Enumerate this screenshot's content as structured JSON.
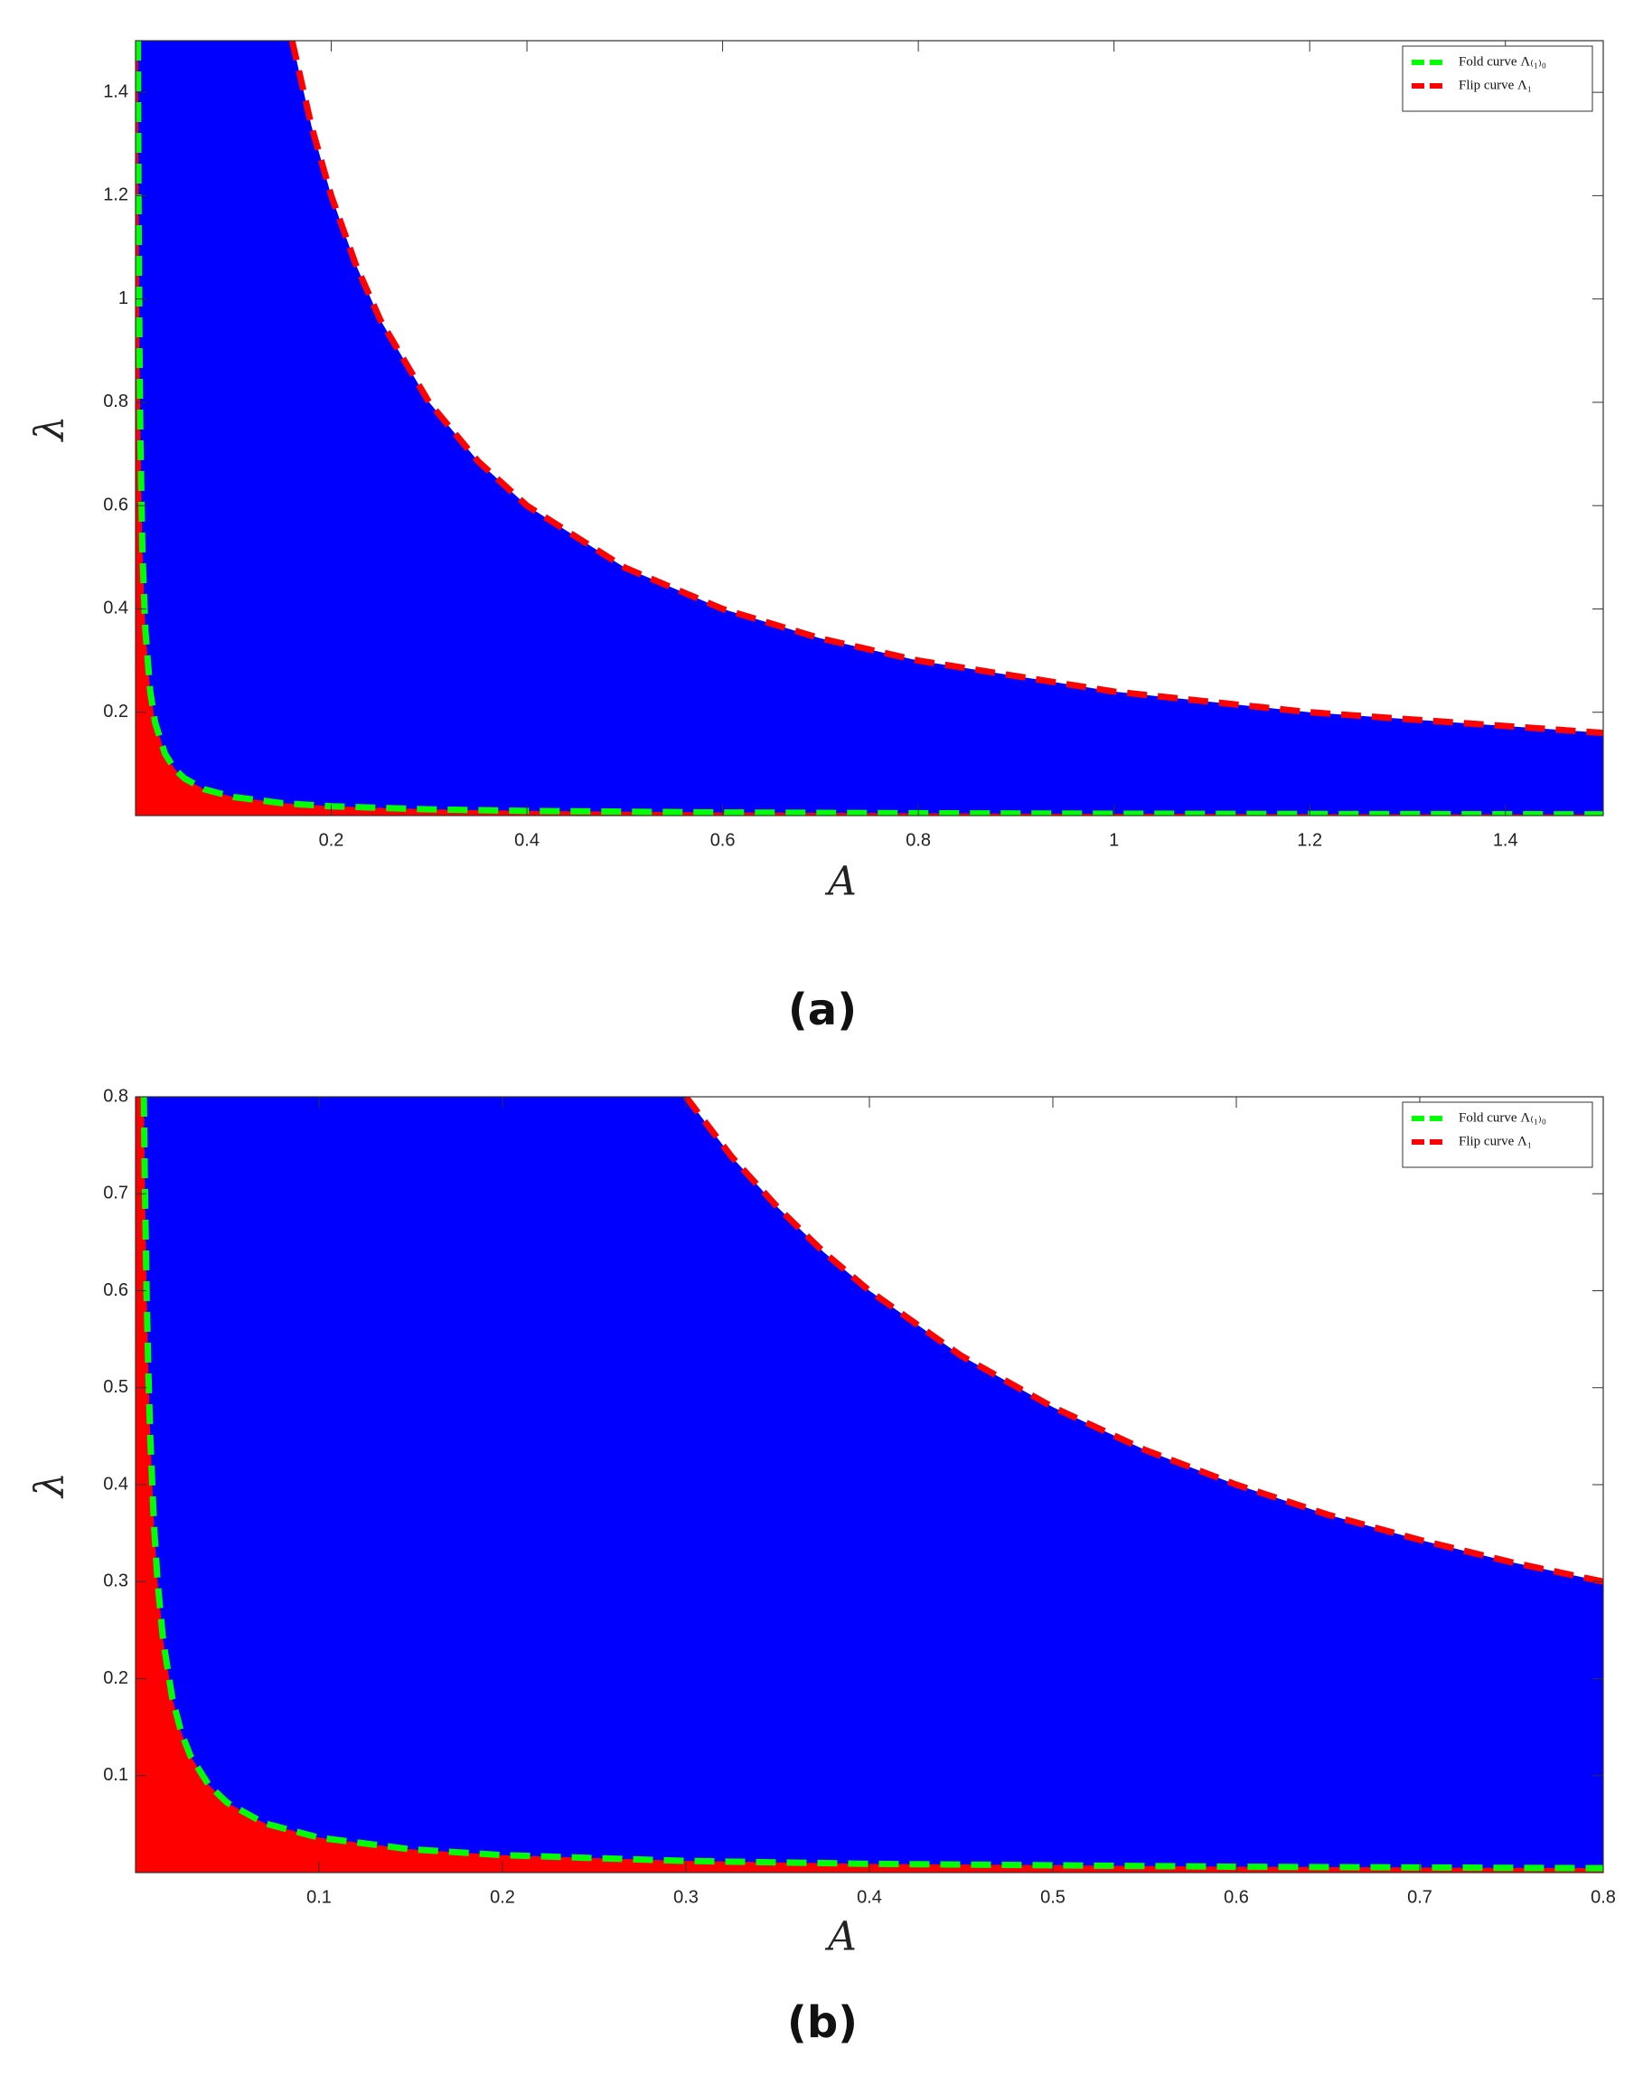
{
  "chart_data": [
    {
      "type": "line",
      "caption": "(a)",
      "x_label": "A",
      "y_label": "λ",
      "xlim": [
        0,
        1.5
      ],
      "xticks": [
        0.2,
        0.4,
        0.6,
        0.8,
        1,
        1.2,
        1.4
      ],
      "ylim": [
        0,
        1.5
      ],
      "yticks": [
        0.2,
        0.4,
        0.6,
        0.8,
        1,
        1.2,
        1.4
      ],
      "grid": false,
      "legend": "upper right",
      "series": [
        {
          "name": "Fold curve Λ₍₁₎₀",
          "color": "#00ff00",
          "fill_below": "#ff0000",
          "x": [
            0.0024,
            0.003,
            0.004,
            0.005,
            0.007,
            0.01,
            0.015,
            0.02,
            0.03,
            0.04,
            0.05,
            0.07,
            0.1,
            0.15,
            0.2,
            0.3,
            0.4,
            0.6,
            0.8,
            1.0,
            1.2,
            1.5
          ],
          "values": [
            1.5,
            1.2,
            0.9,
            0.72,
            0.51,
            0.36,
            0.24,
            0.18,
            0.12,
            0.09,
            0.072,
            0.051,
            0.036,
            0.024,
            0.018,
            0.012,
            0.009,
            0.006,
            0.0045,
            0.0036,
            0.003,
            0.0024
          ]
        },
        {
          "name": "Flip curve Λ₁",
          "color": "#ff0000",
          "fill_below": "#0000ff",
          "x": [
            0.16,
            0.18,
            0.2,
            0.225,
            0.25,
            0.3,
            0.35,
            0.4,
            0.5,
            0.6,
            0.7,
            0.8,
            1.0,
            1.2,
            1.5
          ],
          "values": [
            1.5,
            1.333,
            1.2,
            1.067,
            0.96,
            0.8,
            0.686,
            0.6,
            0.48,
            0.4,
            0.343,
            0.3,
            0.24,
            0.2,
            0.16
          ]
        }
      ]
    },
    {
      "type": "line",
      "caption": "(b)",
      "x_label": "A",
      "y_label": "λ",
      "xlim": [
        0,
        0.8
      ],
      "xticks": [
        0.1,
        0.2,
        0.3,
        0.4,
        0.5,
        0.6,
        0.7,
        0.8
      ],
      "ylim": [
        0,
        0.8
      ],
      "yticks": [
        0.1,
        0.2,
        0.3,
        0.4,
        0.5,
        0.6,
        0.7,
        0.8
      ],
      "grid": false,
      "legend": "upper right",
      "series": [
        {
          "name": "Fold curve Λ₍₁₎₀",
          "color": "#00ff00",
          "fill_below": "#ff0000",
          "x": [
            0.0045,
            0.005,
            0.006,
            0.007,
            0.008,
            0.01,
            0.012,
            0.015,
            0.02,
            0.025,
            0.03,
            0.04,
            0.05,
            0.07,
            0.1,
            0.15,
            0.2,
            0.3,
            0.4,
            0.6,
            0.8
          ],
          "values": [
            0.8,
            0.72,
            0.6,
            0.514,
            0.45,
            0.36,
            0.3,
            0.24,
            0.18,
            0.144,
            0.12,
            0.09,
            0.072,
            0.051,
            0.036,
            0.024,
            0.018,
            0.012,
            0.009,
            0.006,
            0.0045
          ]
        },
        {
          "name": "Flip curve Λ₁",
          "color": "#ff0000",
          "fill_below": "#0000ff",
          "x": [
            0.3,
            0.325,
            0.35,
            0.375,
            0.4,
            0.45,
            0.5,
            0.55,
            0.6,
            0.65,
            0.7,
            0.75,
            0.8
          ],
          "values": [
            0.8,
            0.738,
            0.686,
            0.64,
            0.6,
            0.533,
            0.48,
            0.436,
            0.4,
            0.369,
            0.343,
            0.32,
            0.3
          ]
        }
      ]
    }
  ]
}
